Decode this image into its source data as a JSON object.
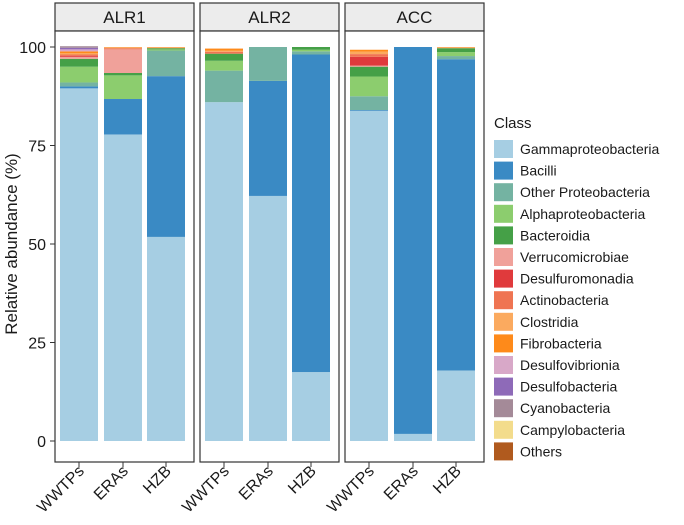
{
  "chart_data": {
    "type": "stacked-bar",
    "ylabel": "Relative abundance (%)",
    "xlabel": "",
    "ylim": [
      0,
      100
    ],
    "yticks": [
      0,
      25,
      50,
      75,
      100
    ],
    "panels": [
      "ALR1",
      "ALR2",
      "ACC"
    ],
    "categories": [
      "WWTPs",
      "ERAs",
      "HZB"
    ],
    "legend": {
      "title": "Class",
      "placement": "right"
    },
    "series": [
      {
        "name": "Gammaproteobacteria",
        "color": "#a6cee3",
        "values": {
          "ALR1": [
            89.5,
            77.8,
            51.8
          ],
          "ALR2": [
            86.0,
            62.2,
            17.5
          ],
          "ACC": [
            83.8,
            1.8,
            17.9
          ]
        }
      },
      {
        "name": "Bacilli",
        "color": "#3a8ac4",
        "values": {
          "ALR1": [
            0.5,
            9.0,
            40.8
          ],
          "ALR2": [
            0.0,
            29.2,
            80.6
          ],
          "ACC": [
            0.2,
            98.2,
            79.0
          ]
        }
      },
      {
        "name": "Other Proteobacteria",
        "color": "#74b3a2",
        "values": {
          "ALR1": [
            1.0,
            0.0,
            6.5
          ],
          "ALR2": [
            8.0,
            8.6,
            0.8
          ],
          "ACC": [
            3.5,
            0.0,
            0.8
          ]
        }
      },
      {
        "name": "Alphaproteobacteria",
        "color": "#8ccd6e",
        "values": {
          "ALR1": [
            4.0,
            6.0,
            0.3
          ],
          "ALR2": [
            2.5,
            0.0,
            0.4
          ],
          "ACC": [
            5.0,
            0.0,
            1.0
          ]
        }
      },
      {
        "name": "Bacteroidia",
        "color": "#45a047",
        "values": {
          "ALR1": [
            2.0,
            0.6,
            0.3
          ],
          "ALR2": [
            1.8,
            0.0,
            0.7
          ],
          "ACC": [
            2.5,
            0.0,
            1.0
          ]
        }
      },
      {
        "name": "Verrucomicrobiae",
        "color": "#f0a19a",
        "values": {
          "ALR1": [
            0.5,
            6.0,
            0.0
          ],
          "ALR2": [
            0.0,
            0.0,
            0.0
          ],
          "ACC": [
            0.3,
            0.0,
            0.0
          ]
        }
      },
      {
        "name": "Desulfuromonadia",
        "color": "#e03a3c",
        "values": {
          "ALR1": [
            0.3,
            0.0,
            0.0
          ],
          "ALR2": [
            0.0,
            0.0,
            0.0
          ],
          "ACC": [
            2.2,
            0.0,
            0.0
          ]
        }
      },
      {
        "name": "Actinobacteria",
        "color": "#ef7452",
        "values": {
          "ALR1": [
            0.3,
            0.3,
            0.0
          ],
          "ALR2": [
            0.5,
            0.0,
            0.0
          ],
          "ACC": [
            0.7,
            0.0,
            0.0
          ]
        }
      },
      {
        "name": "Clostridia",
        "color": "#fbaa5f",
        "values": {
          "ALR1": [
            0.3,
            0.3,
            0.3
          ],
          "ALR2": [
            0.3,
            0.0,
            0.0
          ],
          "ACC": [
            0.6,
            0.0,
            0.3
          ]
        }
      },
      {
        "name": "Fibrobacteria",
        "color": "#fe8a1a",
        "values": {
          "ALR1": [
            0.5,
            0.0,
            0.0
          ],
          "ALR2": [
            0.5,
            0.0,
            0.0
          ],
          "ACC": [
            0.5,
            0.0,
            0.0
          ]
        }
      },
      {
        "name": "Desulfovibrionia",
        "color": "#d8a8c8",
        "values": {
          "ALR1": [
            0.5,
            0.0,
            0.0
          ],
          "ALR2": [
            0.0,
            0.0,
            0.0
          ],
          "ACC": [
            0.0,
            0.0,
            0.0
          ]
        }
      },
      {
        "name": "Desulfobacteria",
        "color": "#8e6ab8",
        "values": {
          "ALR1": [
            0.4,
            0.0,
            0.0
          ],
          "ALR2": [
            0.0,
            0.0,
            0.0
          ],
          "ACC": [
            0.0,
            0.0,
            0.0
          ]
        }
      },
      {
        "name": "Cyanobacteria",
        "color": "#a48a98",
        "values": {
          "ALR1": [
            0.4,
            0.0,
            0.0
          ],
          "ALR2": [
            0.0,
            0.0,
            0.0
          ],
          "ACC": [
            0.0,
            0.0,
            0.0
          ]
        }
      },
      {
        "name": "Campylobacteria",
        "color": "#f3dc8c",
        "values": {
          "ALR1": [
            0.0,
            0.0,
            0.0
          ],
          "ALR2": [
            0.0,
            0.0,
            0.0
          ],
          "ACC": [
            0.0,
            0.0,
            0.0
          ]
        }
      },
      {
        "name": "Others",
        "color": "#b05a1e",
        "values": {
          "ALR1": [
            0.0,
            0.0,
            0.0
          ],
          "ALR2": [
            0.0,
            0.0,
            0.0
          ],
          "ACC": [
            0.0,
            0.0,
            0.0
          ]
        }
      }
    ]
  }
}
